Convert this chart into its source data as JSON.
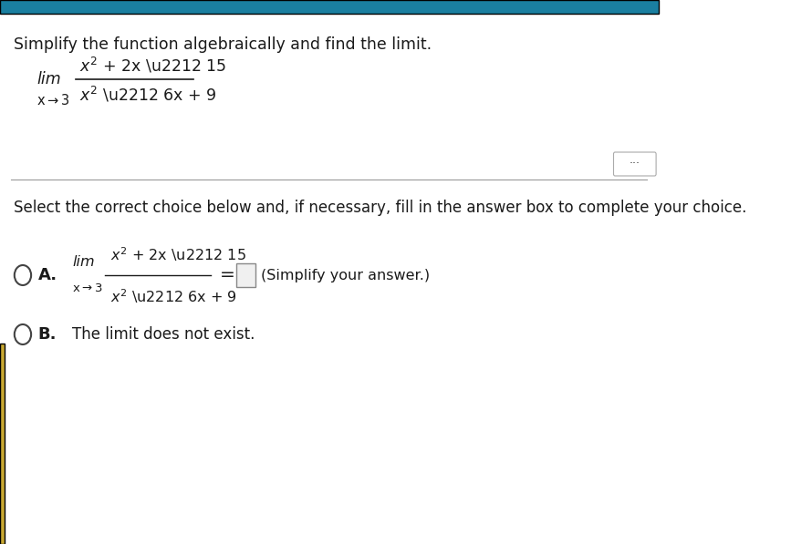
{
  "bg_color": "#ffffff",
  "top_bar_color": "#1a7fa0",
  "left_accent_color": "#c8a832",
  "title_text": "Simplify the function algebraically and find the limit.",
  "instruction_text": "Select the correct choice below and, if necessary, fill in the answer box to complete your choice.",
  "choice_a_label": "A.",
  "choice_b_label": "B.",
  "choice_b_text": "The limit does not exist.",
  "dots_color": "#333333",
  "text_color": "#1a1a1a",
  "font_size_title": 12.5,
  "font_size_body": 12,
  "font_size_math": 11.5,
  "divider_color": "#999999",
  "circle_color": "#444444",
  "simplify_text": "(Simplify your answer.)"
}
